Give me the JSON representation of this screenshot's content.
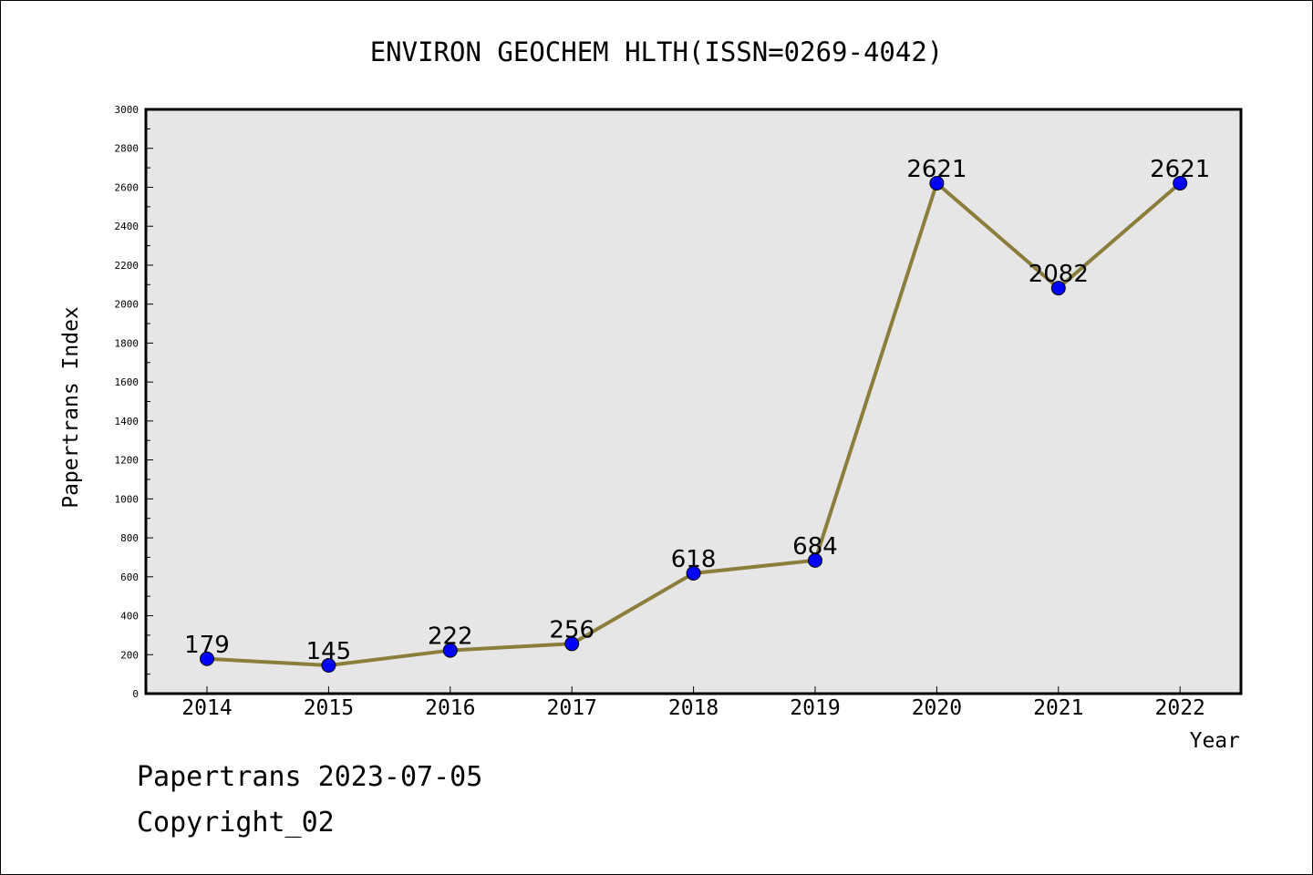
{
  "chart_data": {
    "type": "line",
    "title": "ENVIRON GEOCHEM HLTH(ISSN=0269-4042)",
    "xlabel": "Year",
    "ylabel": "Papertrans Index",
    "categories": [
      "2014",
      "2015",
      "2016",
      "2017",
      "2018",
      "2019",
      "2020",
      "2021",
      "2022"
    ],
    "series": [
      {
        "values": [
          179,
          145,
          222,
          256,
          618,
          684,
          2621,
          2082,
          2621
        ]
      }
    ],
    "ylim": [
      0,
      3000
    ],
    "yticks": [
      0,
      200,
      400,
      600,
      800,
      1000,
      1200,
      1400,
      1600,
      1800,
      2000,
      2200,
      2400,
      2600,
      2800,
      3000
    ],
    "grid": false,
    "legend": "none",
    "colors": {
      "line": "#8b7d3a",
      "marker": "#0000ff",
      "plot_background": "#e6e6e6"
    }
  },
  "footer": {
    "line1": "Papertrans 2023-07-05",
    "line2": "Copyright_02"
  }
}
